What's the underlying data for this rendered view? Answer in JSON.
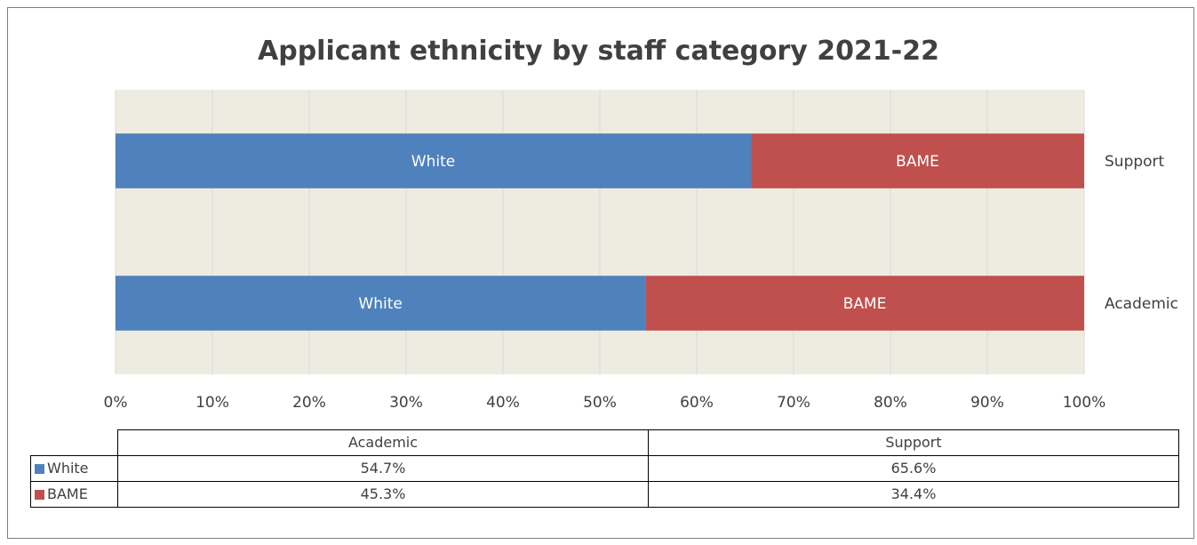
{
  "chart_data": {
    "type": "bar",
    "orientation": "horizontal",
    "stacked": "percent",
    "title": "Applicant ethnicity by staff category 2021-22",
    "categories": [
      "Academic",
      "Support"
    ],
    "series": [
      {
        "name": "White",
        "values": [
          54.7,
          65.6
        ],
        "color": "#4f81bd",
        "value_labels": [
          "54.7%",
          "65.6%"
        ]
      },
      {
        "name": "BAME",
        "values": [
          45.3,
          34.4
        ],
        "color": "#c0504d",
        "value_labels": [
          "45.3%",
          "34.4%"
        ]
      }
    ],
    "xlim": [
      0,
      100
    ],
    "x_ticks": [
      "0%",
      "10%",
      "20%",
      "30%",
      "40%",
      "50%",
      "60%",
      "70%",
      "80%",
      "90%",
      "100%"
    ],
    "grid": true,
    "plot_background": "#eeece1",
    "legend": "data-table-below",
    "data_table": true
  }
}
